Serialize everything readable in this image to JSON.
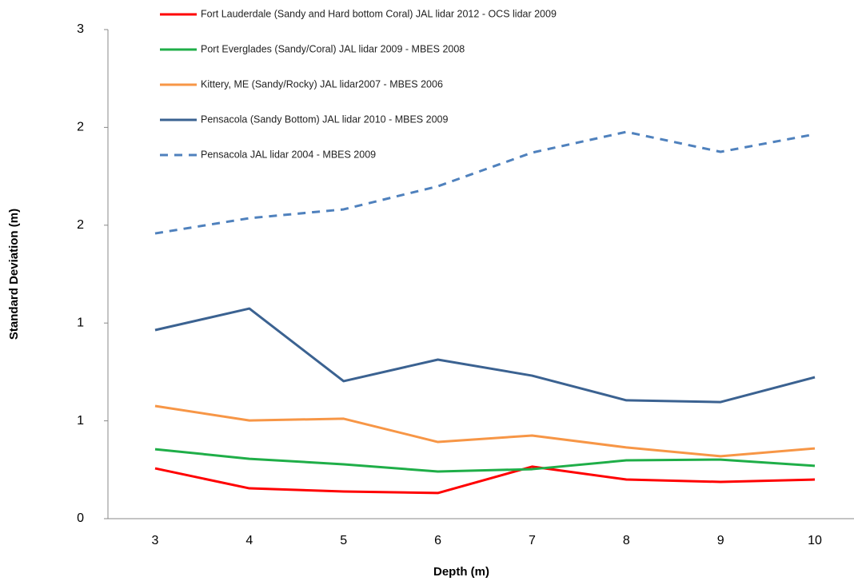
{
  "chart_data": {
    "type": "line",
    "x_label": "Depth (m)",
    "y_label": "Standard Deviation (m)",
    "categories": [
      3,
      4,
      5,
      6,
      7,
      8,
      9,
      10
    ],
    "ylim": [
      0,
      2.5
    ],
    "yticks": [
      0,
      {
        "value": 0.5,
        "label": "1"
      },
      1,
      {
        "value": 1.5,
        "label": "2"
      },
      2,
      {
        "value": 2.5,
        "label": "3"
      }
    ],
    "grid": false,
    "series": [
      {
        "name": "Fort Lauderdale (Sandy and Hard bottom  Coral) JAL lidar 2012 - OCS lidar 2009",
        "color": "#ff0000",
        "linestyle": "solid",
        "values": [
          0.257,
          0.155,
          0.139,
          0.131,
          0.266,
          0.2,
          0.188,
          0.2
        ]
      },
      {
        "name": "Port Everglades (Sandy/Coral) JAL lidar 2009  - MBES 2008",
        "color": "#1fae48",
        "linestyle": "solid",
        "values": [
          0.355,
          0.306,
          0.278,
          0.241,
          0.253,
          0.298,
          0.302,
          0.27
        ]
      },
      {
        "name": "Kittery, ME (Sandy/Rocky) JAL lidar2007 - MBES 2006",
        "color": "#f79646",
        "linestyle": "solid",
        "values": [
          0.576,
          0.502,
          0.511,
          0.392,
          0.425,
          0.364,
          0.319,
          0.359
        ]
      },
      {
        "name": "Pensacola (Sandy Bottom) JAL lidar 2010 - MBES 2009",
        "color": "#3b6291",
        "linestyle": "solid",
        "values": [
          0.964,
          1.074,
          0.703,
          0.813,
          0.731,
          0.605,
          0.596,
          0.723
        ]
      },
      {
        "name": "Pensacola JAL lidar 2004 - MBES 2009",
        "color": "#4f81bd",
        "linestyle": "dashed",
        "values": [
          1.458,
          1.536,
          1.581,
          1.699,
          1.871,
          1.977,
          1.875,
          1.965
        ]
      }
    ]
  }
}
